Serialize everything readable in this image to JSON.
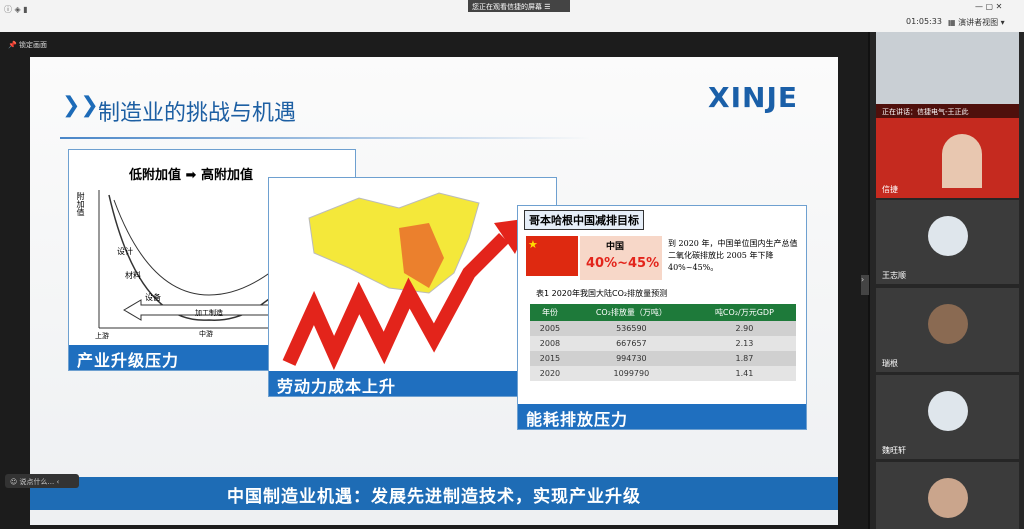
{
  "top_bar": {
    "notice": "您正在观看信捷的屏幕",
    "timer": "01:05:33",
    "view_button": "演讲者视图"
  },
  "lock_button": "锁定画面",
  "slide": {
    "title": "制造业的挑战与机遇",
    "logo": "XINJE",
    "panel1": {
      "header_left": "低附加值",
      "header_right": "高附加值",
      "y_label": "附加值",
      "labels": [
        "设计",
        "材料",
        "设备",
        "加工制造"
      ],
      "x_labels": [
        "上游",
        "中游"
      ],
      "caption": "产业升级压力"
    },
    "panel2": {
      "caption": "劳动力成本上升"
    },
    "panel3": {
      "heading": "哥本哈根中国减排目标",
      "country": "中国",
      "target": "40%~45%",
      "statement": "到 2020 年，中国单位国内生产总值二氧化碳排放比 2005 年下降 40%~45%。",
      "table": {
        "caption": "表1  2020年我国大陆CO₂排放量预测",
        "columns": [
          "年份",
          "CO₂排放量（万吨）",
          "吨CO₂/万元GDP"
        ],
        "rows": [
          [
            "2005",
            "536590",
            "2.90"
          ],
          [
            "2008",
            "667657",
            "2.13"
          ],
          [
            "2015",
            "994730",
            "1.87"
          ],
          [
            "2020",
            "1099790",
            "1.41"
          ]
        ]
      },
      "caption": "能耗排放压力"
    },
    "banner": "中国制造业机遇：发展先进制造技术，实现产业升级"
  },
  "chat_input": "说点什么...",
  "participants": {
    "speaking": "正在讲话：信捷电气-王正此",
    "names": [
      "信捷",
      "王志顺",
      "瑞根",
      "魏旺轩"
    ]
  }
}
